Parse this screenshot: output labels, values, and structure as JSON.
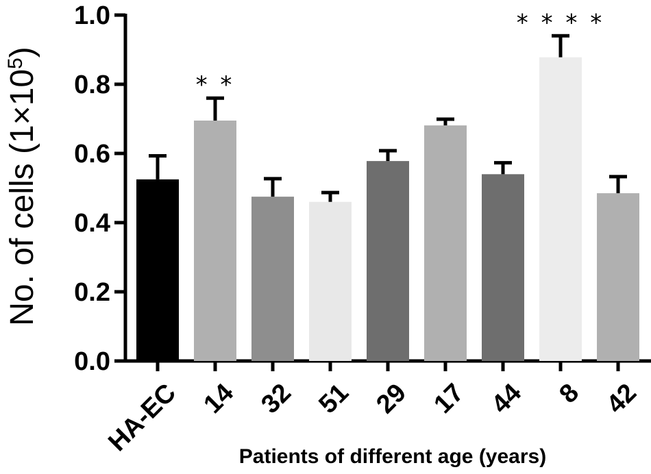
{
  "chart_data": {
    "type": "bar",
    "title": "",
    "xlabel": "Patients of different age (years)",
    "ylabel_main": "No. of cells (1×10",
    "ylabel_exp": "5",
    "ylabel_close": ")",
    "ylim": [
      0,
      1.0
    ],
    "yticks": [
      {
        "value": 0.0,
        "label": "0.0"
      },
      {
        "value": 0.2,
        "label": "0.2"
      },
      {
        "value": 0.4,
        "label": "0.4"
      },
      {
        "value": 0.6,
        "label": "0.6"
      },
      {
        "value": 0.8,
        "label": "0.8"
      },
      {
        "value": 1.0,
        "label": "1.0"
      }
    ],
    "categories": [
      "HA-EC",
      "14",
      "32",
      "51",
      "29",
      "17",
      "44",
      "8",
      "42"
    ],
    "values": [
      0.525,
      0.695,
      0.475,
      0.46,
      0.578,
      0.681,
      0.54,
      0.878,
      0.485
    ],
    "errors": [
      0.068,
      0.065,
      0.052,
      0.027,
      0.03,
      0.018,
      0.033,
      0.062,
      0.048
    ],
    "colors": [
      "#000000",
      "#b0b0b0",
      "#8e8e8e",
      "#e8e8e8",
      "#6e6e6e",
      "#b0b0b0",
      "#6e6e6e",
      "#ececec",
      "#b0b0b0"
    ],
    "significance": [
      "",
      "**",
      "",
      "",
      "",
      "",
      "",
      "****",
      ""
    ],
    "grid": false
  }
}
